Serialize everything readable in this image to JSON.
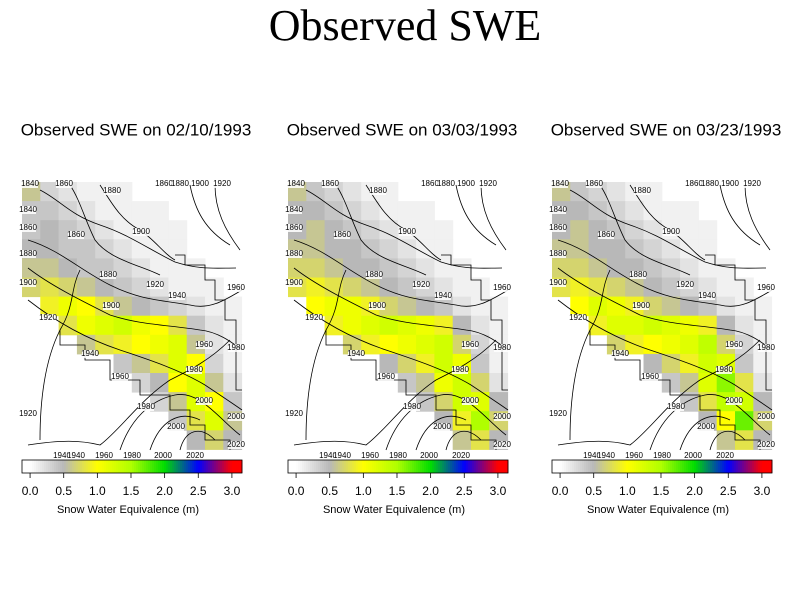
{
  "title": "Observed SWE",
  "panels": [
    {
      "title": "Observed SWE on 02/10/1993",
      "swe": [
        [
          0.6,
          0.3,
          0.2,
          0.1,
          0.1,
          0.1,
          null,
          null,
          null,
          null,
          null,
          null
        ],
        [
          0.4,
          0.4,
          0.3,
          0.2,
          0.1,
          0.1,
          0.1,
          0.1,
          null,
          null,
          null,
          null
        ],
        [
          0.4,
          0.5,
          0.4,
          0.3,
          0.2,
          0.1,
          0.1,
          0.1,
          0.1,
          null,
          null,
          null
        ],
        [
          0.5,
          0.5,
          0.4,
          0.4,
          0.3,
          0.2,
          0.1,
          0.1,
          0.1,
          null,
          null,
          null
        ],
        [
          0.6,
          0.6,
          0.5,
          0.4,
          0.4,
          0.3,
          0.2,
          0.1,
          0.1,
          0.1,
          null,
          null
        ],
        [
          0.7,
          0.8,
          0.7,
          0.6,
          0.5,
          0.4,
          0.3,
          0.2,
          0.1,
          0.1,
          0.1,
          null
        ],
        [
          null,
          0.9,
          1.1,
          1.0,
          0.8,
          0.6,
          0.5,
          0.4,
          0.3,
          0.2,
          0.1,
          0.1
        ],
        [
          null,
          null,
          0.8,
          1.1,
          1.2,
          1.3,
          1.1,
          1.0,
          0.8,
          0.4,
          0.2,
          0.1
        ],
        [
          null,
          null,
          null,
          0.6,
          0.8,
          0.9,
          1.0,
          1.1,
          1.2,
          0.6,
          0.2,
          0.1
        ],
        [
          null,
          null,
          null,
          null,
          null,
          0.4,
          0.6,
          0.8,
          1.2,
          1.0,
          0.3,
          0.1
        ],
        [
          null,
          null,
          null,
          null,
          null,
          null,
          0.3,
          0.5,
          1.0,
          1.2,
          0.6,
          0.2
        ],
        [
          null,
          null,
          null,
          null,
          null,
          null,
          null,
          0.3,
          0.6,
          1.2,
          1.0,
          0.4
        ],
        [
          null,
          null,
          null,
          null,
          null,
          null,
          null,
          null,
          0.4,
          0.8,
          1.2,
          0.6
        ],
        [
          null,
          null,
          null,
          null,
          null,
          null,
          null,
          null,
          null,
          0.5,
          0.7,
          0.5
        ]
      ]
    },
    {
      "title": "Observed SWE on 03/03/1993",
      "swe": [
        [
          0.6,
          0.4,
          0.3,
          0.2,
          0.1,
          0.1,
          null,
          null,
          null,
          null,
          null,
          null
        ],
        [
          0.5,
          0.5,
          0.4,
          0.3,
          0.2,
          0.1,
          0.1,
          0.1,
          null,
          null,
          null,
          null
        ],
        [
          0.5,
          0.6,
          0.5,
          0.4,
          0.3,
          0.2,
          0.1,
          0.1,
          0.1,
          null,
          null,
          null
        ],
        [
          0.6,
          0.6,
          0.5,
          0.5,
          0.4,
          0.3,
          0.2,
          0.1,
          0.1,
          null,
          null,
          null
        ],
        [
          0.7,
          0.7,
          0.6,
          0.5,
          0.5,
          0.4,
          0.3,
          0.2,
          0.1,
          0.1,
          null,
          null
        ],
        [
          0.8,
          0.9,
          0.8,
          0.7,
          0.6,
          0.5,
          0.4,
          0.3,
          0.2,
          0.1,
          0.1,
          null
        ],
        [
          null,
          1.0,
          1.1,
          1.1,
          0.9,
          0.7,
          0.6,
          0.5,
          0.4,
          0.2,
          0.1,
          0.1
        ],
        [
          null,
          null,
          0.9,
          1.1,
          1.2,
          1.3,
          1.2,
          1.1,
          0.9,
          0.5,
          0.2,
          0.1
        ],
        [
          null,
          null,
          null,
          0.7,
          0.9,
          1.0,
          1.1,
          1.2,
          1.3,
          0.7,
          0.3,
          0.1
        ],
        [
          null,
          null,
          null,
          null,
          null,
          0.5,
          0.7,
          0.9,
          1.3,
          1.1,
          0.4,
          0.1
        ],
        [
          null,
          null,
          null,
          null,
          null,
          null,
          0.4,
          0.6,
          1.1,
          1.3,
          0.7,
          0.2
        ],
        [
          null,
          null,
          null,
          null,
          null,
          null,
          null,
          0.4,
          0.7,
          1.3,
          1.2,
          0.5
        ],
        [
          null,
          null,
          null,
          null,
          null,
          null,
          null,
          null,
          0.5,
          0.9,
          1.5,
          0.7
        ],
        [
          null,
          null,
          null,
          null,
          null,
          null,
          null,
          null,
          null,
          0.6,
          0.8,
          0.5
        ]
      ]
    },
    {
      "title": "Observed SWE on 03/23/1993",
      "swe": [
        [
          0.6,
          0.4,
          0.3,
          0.2,
          0.1,
          0.1,
          null,
          null,
          null,
          null,
          null,
          null
        ],
        [
          0.5,
          0.5,
          0.4,
          0.3,
          0.2,
          0.1,
          0.1,
          0.1,
          null,
          null,
          null,
          null
        ],
        [
          0.5,
          0.6,
          0.5,
          0.4,
          0.3,
          0.2,
          0.1,
          0.1,
          0.1,
          null,
          null,
          null
        ],
        [
          0.6,
          0.6,
          0.5,
          0.5,
          0.4,
          0.3,
          0.2,
          0.1,
          0.1,
          null,
          null,
          null
        ],
        [
          0.7,
          0.7,
          0.6,
          0.5,
          0.5,
          0.4,
          0.3,
          0.2,
          0.1,
          0.1,
          null,
          null
        ],
        [
          0.8,
          0.9,
          0.8,
          0.7,
          0.6,
          0.5,
          0.4,
          0.3,
          0.2,
          0.1,
          0.1,
          null
        ],
        [
          null,
          1.0,
          1.2,
          1.1,
          0.9,
          0.7,
          0.6,
          0.5,
          0.4,
          0.2,
          0.1,
          0.1
        ],
        [
          null,
          null,
          0.9,
          1.2,
          1.2,
          1.3,
          1.2,
          1.1,
          0.9,
          0.5,
          0.2,
          0.1
        ],
        [
          null,
          null,
          null,
          0.7,
          0.9,
          1.0,
          1.1,
          1.2,
          1.4,
          0.7,
          0.3,
          0.1
        ],
        [
          null,
          null,
          null,
          null,
          null,
          0.5,
          0.7,
          0.9,
          1.3,
          1.2,
          0.4,
          0.1
        ],
        [
          null,
          null,
          null,
          null,
          null,
          null,
          0.4,
          0.6,
          1.2,
          1.6,
          0.8,
          0.2
        ],
        [
          null,
          null,
          null,
          null,
          null,
          null,
          null,
          0.4,
          0.8,
          1.4,
          1.3,
          0.5
        ],
        [
          null,
          null,
          null,
          null,
          null,
          null,
          null,
          null,
          0.5,
          1.0,
          1.7,
          0.7
        ],
        [
          null,
          null,
          null,
          null,
          null,
          null,
          null,
          null,
          null,
          0.6,
          0.8,
          0.5
        ]
      ]
    }
  ],
  "contour_levels": [
    1840,
    1860,
    1880,
    1900,
    1920,
    1940,
    1960,
    1980,
    2000,
    2020
  ],
  "colorbar": {
    "label": "Snow Water Equivalence (m)",
    "clim": [
      -0.12,
      3.15
    ],
    "colormap": [
      [
        0,
        "#ffffff"
      ],
      [
        0.5,
        "#b8b8b8"
      ],
      [
        1.0,
        "#ffff00"
      ],
      [
        1.5,
        "#b0ff00"
      ],
      [
        2.0,
        "#00dd00"
      ],
      [
        2.5,
        "#0000ff"
      ],
      [
        3.0,
        "#ff0000"
      ]
    ],
    "ticks": [
      {
        "value": 0,
        "label": "0.0"
      },
      {
        "value": 0.5,
        "label": "0.5"
      },
      {
        "value": 1,
        "label": "1.0"
      },
      {
        "value": 1.5,
        "label": "1.5"
      },
      {
        "value": 2,
        "label": "2.0"
      },
      {
        "value": 2.5,
        "label": "2.5"
      },
      {
        "value": 3,
        "label": "3.0"
      }
    ]
  }
}
